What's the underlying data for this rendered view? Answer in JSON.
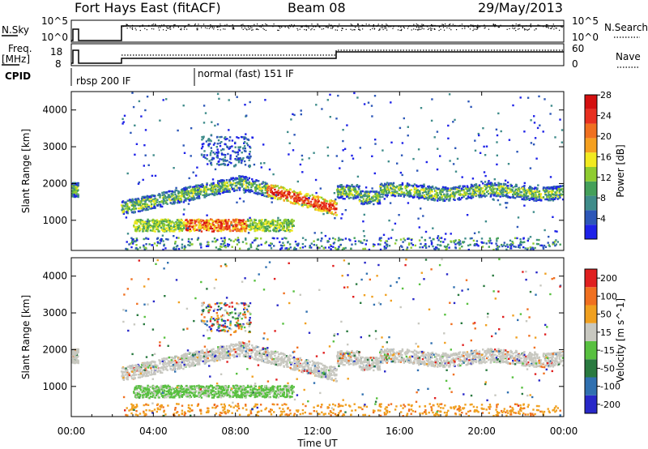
{
  "header": {
    "radar": "Fort Hays East (fitACF)",
    "beam": "Beam 08",
    "date": "29/May/2013"
  },
  "nsky_panel": {
    "left_label": "N.Sky",
    "left_ticks": [
      "10^5",
      "10^0"
    ],
    "right_ticks": [
      "10^5",
      "10^0"
    ],
    "right_label": "N.Search"
  },
  "freq_panel": {
    "left_label_1": "Freq.",
    "left_label_2": "[MHz]",
    "left_ticks": [
      "18",
      "8"
    ],
    "right_ticks": [
      "60",
      "0"
    ],
    "right_label": "Nave"
  },
  "cpid": {
    "label": "CPID",
    "modes": [
      {
        "start_hour": 0.0,
        "text": "rbsp 200 IF"
      },
      {
        "start_hour": 6.0,
        "text": "normal (fast) 151 IF"
      }
    ]
  },
  "chart_data": [
    {
      "type": "heatmap",
      "parameter": "Power",
      "ylabel": "Slant Range [km]",
      "ylim": [
        180,
        4500
      ],
      "yticks": [
        "1000",
        "2000",
        "3000",
        "4000"
      ],
      "colorbar_label": "Power [dB]",
      "colorbar_ticks": [
        "4",
        "8",
        "12",
        "16",
        "20",
        "24",
        "28"
      ],
      "colorbar_colors": [
        "#1e22e8",
        "#2d57b8",
        "#3f8c8a",
        "#45a05a",
        "#8fcc30",
        "#f2ea20",
        "#f5a020",
        "#f07020",
        "#e83020",
        "#d41010"
      ],
      "echo_regions_hours_km": [
        {
          "t": [
            0.0,
            0.25
          ],
          "r": [
            1700,
            2000
          ]
        },
        {
          "t": [
            2.4,
            12.9
          ],
          "r": [
            1300,
            2050
          ]
        },
        {
          "t": [
            3.0,
            10.8
          ],
          "r": [
            700,
            1050
          ]
        },
        {
          "t": [
            10.0,
            12.9
          ],
          "r": [
            1000,
            1450
          ]
        },
        {
          "t": [
            13.0,
            24.0
          ],
          "r": [
            1600,
            2000
          ]
        },
        {
          "t": [
            6.3,
            8.5
          ],
          "r": [
            2600,
            3300
          ]
        }
      ]
    },
    {
      "type": "heatmap",
      "parameter": "Velocity",
      "ylabel": "Slant Range [km]",
      "xlabel": "Time UT",
      "xticks": [
        "00:00",
        "04:00",
        "08:00",
        "12:00",
        "16:00",
        "20:00",
        "00:00"
      ],
      "ylim": [
        180,
        4500
      ],
      "yticks": [
        "1000",
        "2000",
        "3000",
        "4000"
      ],
      "colorbar_label": "Velocity [m s^-1]",
      "colorbar_ticks": [
        "200",
        "100",
        "50",
        "15",
        "-15",
        "-50",
        "-100",
        "-200"
      ],
      "colorbar_colors": [
        "#2828c8",
        "#3070b0",
        "#2a7a40",
        "#58c040",
        "#c8c8c0",
        "#f0a020",
        "#f07020",
        "#e02020"
      ]
    }
  ],
  "time_axis": {
    "label": "Time UT",
    "ticks": [
      "00:00",
      "04:00",
      "08:00",
      "12:00",
      "16:00",
      "20:00",
      "00:00"
    ]
  }
}
